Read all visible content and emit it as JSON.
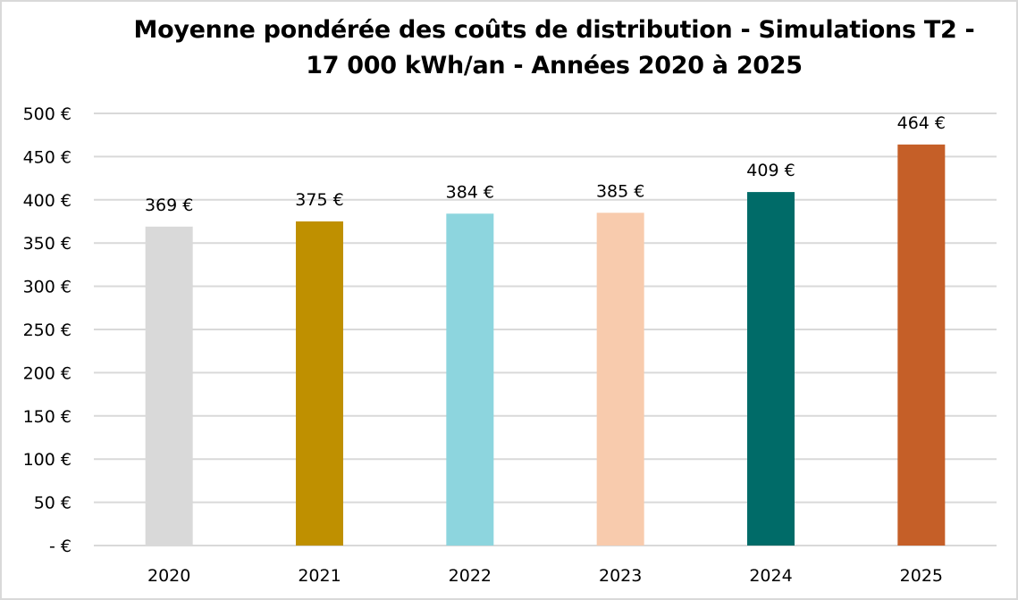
{
  "chart_data": {
    "type": "bar",
    "title_line1": "Moyenne pondérée des coûts de distribution - Simulations T2 -",
    "title_line2": "17 000 kWh/an - Années 2020 à 2025",
    "categories": [
      "2020",
      "2021",
      "2022",
      "2023",
      "2024",
      "2025"
    ],
    "values": [
      369,
      375,
      384,
      385,
      409,
      464
    ],
    "data_labels": [
      "369 €",
      "375 €",
      "384 €",
      "385 €",
      "409 €",
      "464 €"
    ],
    "colors": [
      "#d9d9d9",
      "#bf9000",
      "#8dd5de",
      "#f8cbad",
      "#006b68",
      "#c55f28"
    ],
    "xlabel": "",
    "ylabel": "",
    "ylim": [
      0,
      500
    ],
    "yticks": [
      0,
      50,
      100,
      150,
      200,
      250,
      300,
      350,
      400,
      450,
      500
    ],
    "ytick_labels": [
      "-   €",
      "50 €",
      "100 €",
      "150 €",
      "200 €",
      "250 €",
      "300 €",
      "350 €",
      "400 €",
      "450 €",
      "500 €"
    ],
    "grid": true,
    "legend": "none"
  }
}
